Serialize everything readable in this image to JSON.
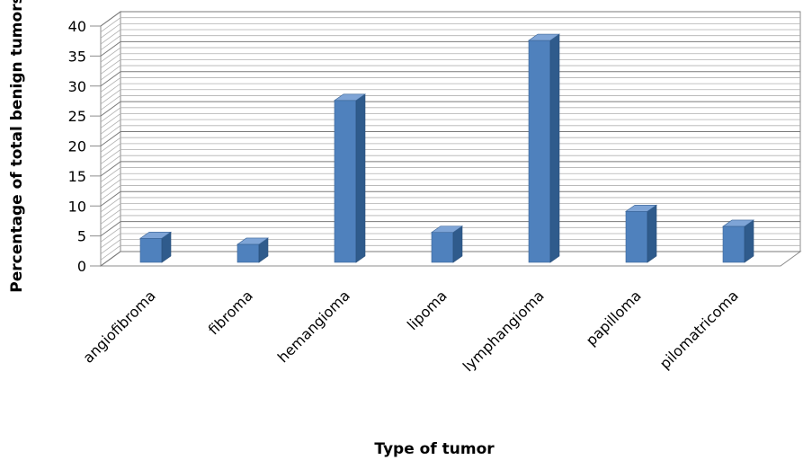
{
  "chart_data": {
    "type": "bar",
    "title": "",
    "xlabel": "Type of tumor",
    "ylabel": "Percentage of total benign tumors",
    "categories": [
      "angiofibroma",
      "fibroma",
      "hemangioma",
      "lipoma",
      "lymphangioma",
      "papilloma",
      "pilomatricoma"
    ],
    "values": [
      4,
      3,
      27,
      5,
      37,
      8.5,
      6
    ],
    "ylim": [
      0,
      40
    ],
    "yticks": [
      0,
      5,
      10,
      15,
      20,
      25,
      30,
      35,
      40
    ],
    "grid": true,
    "legend": "none",
    "style": "3d-column",
    "bar_color": "#4f81bd"
  }
}
